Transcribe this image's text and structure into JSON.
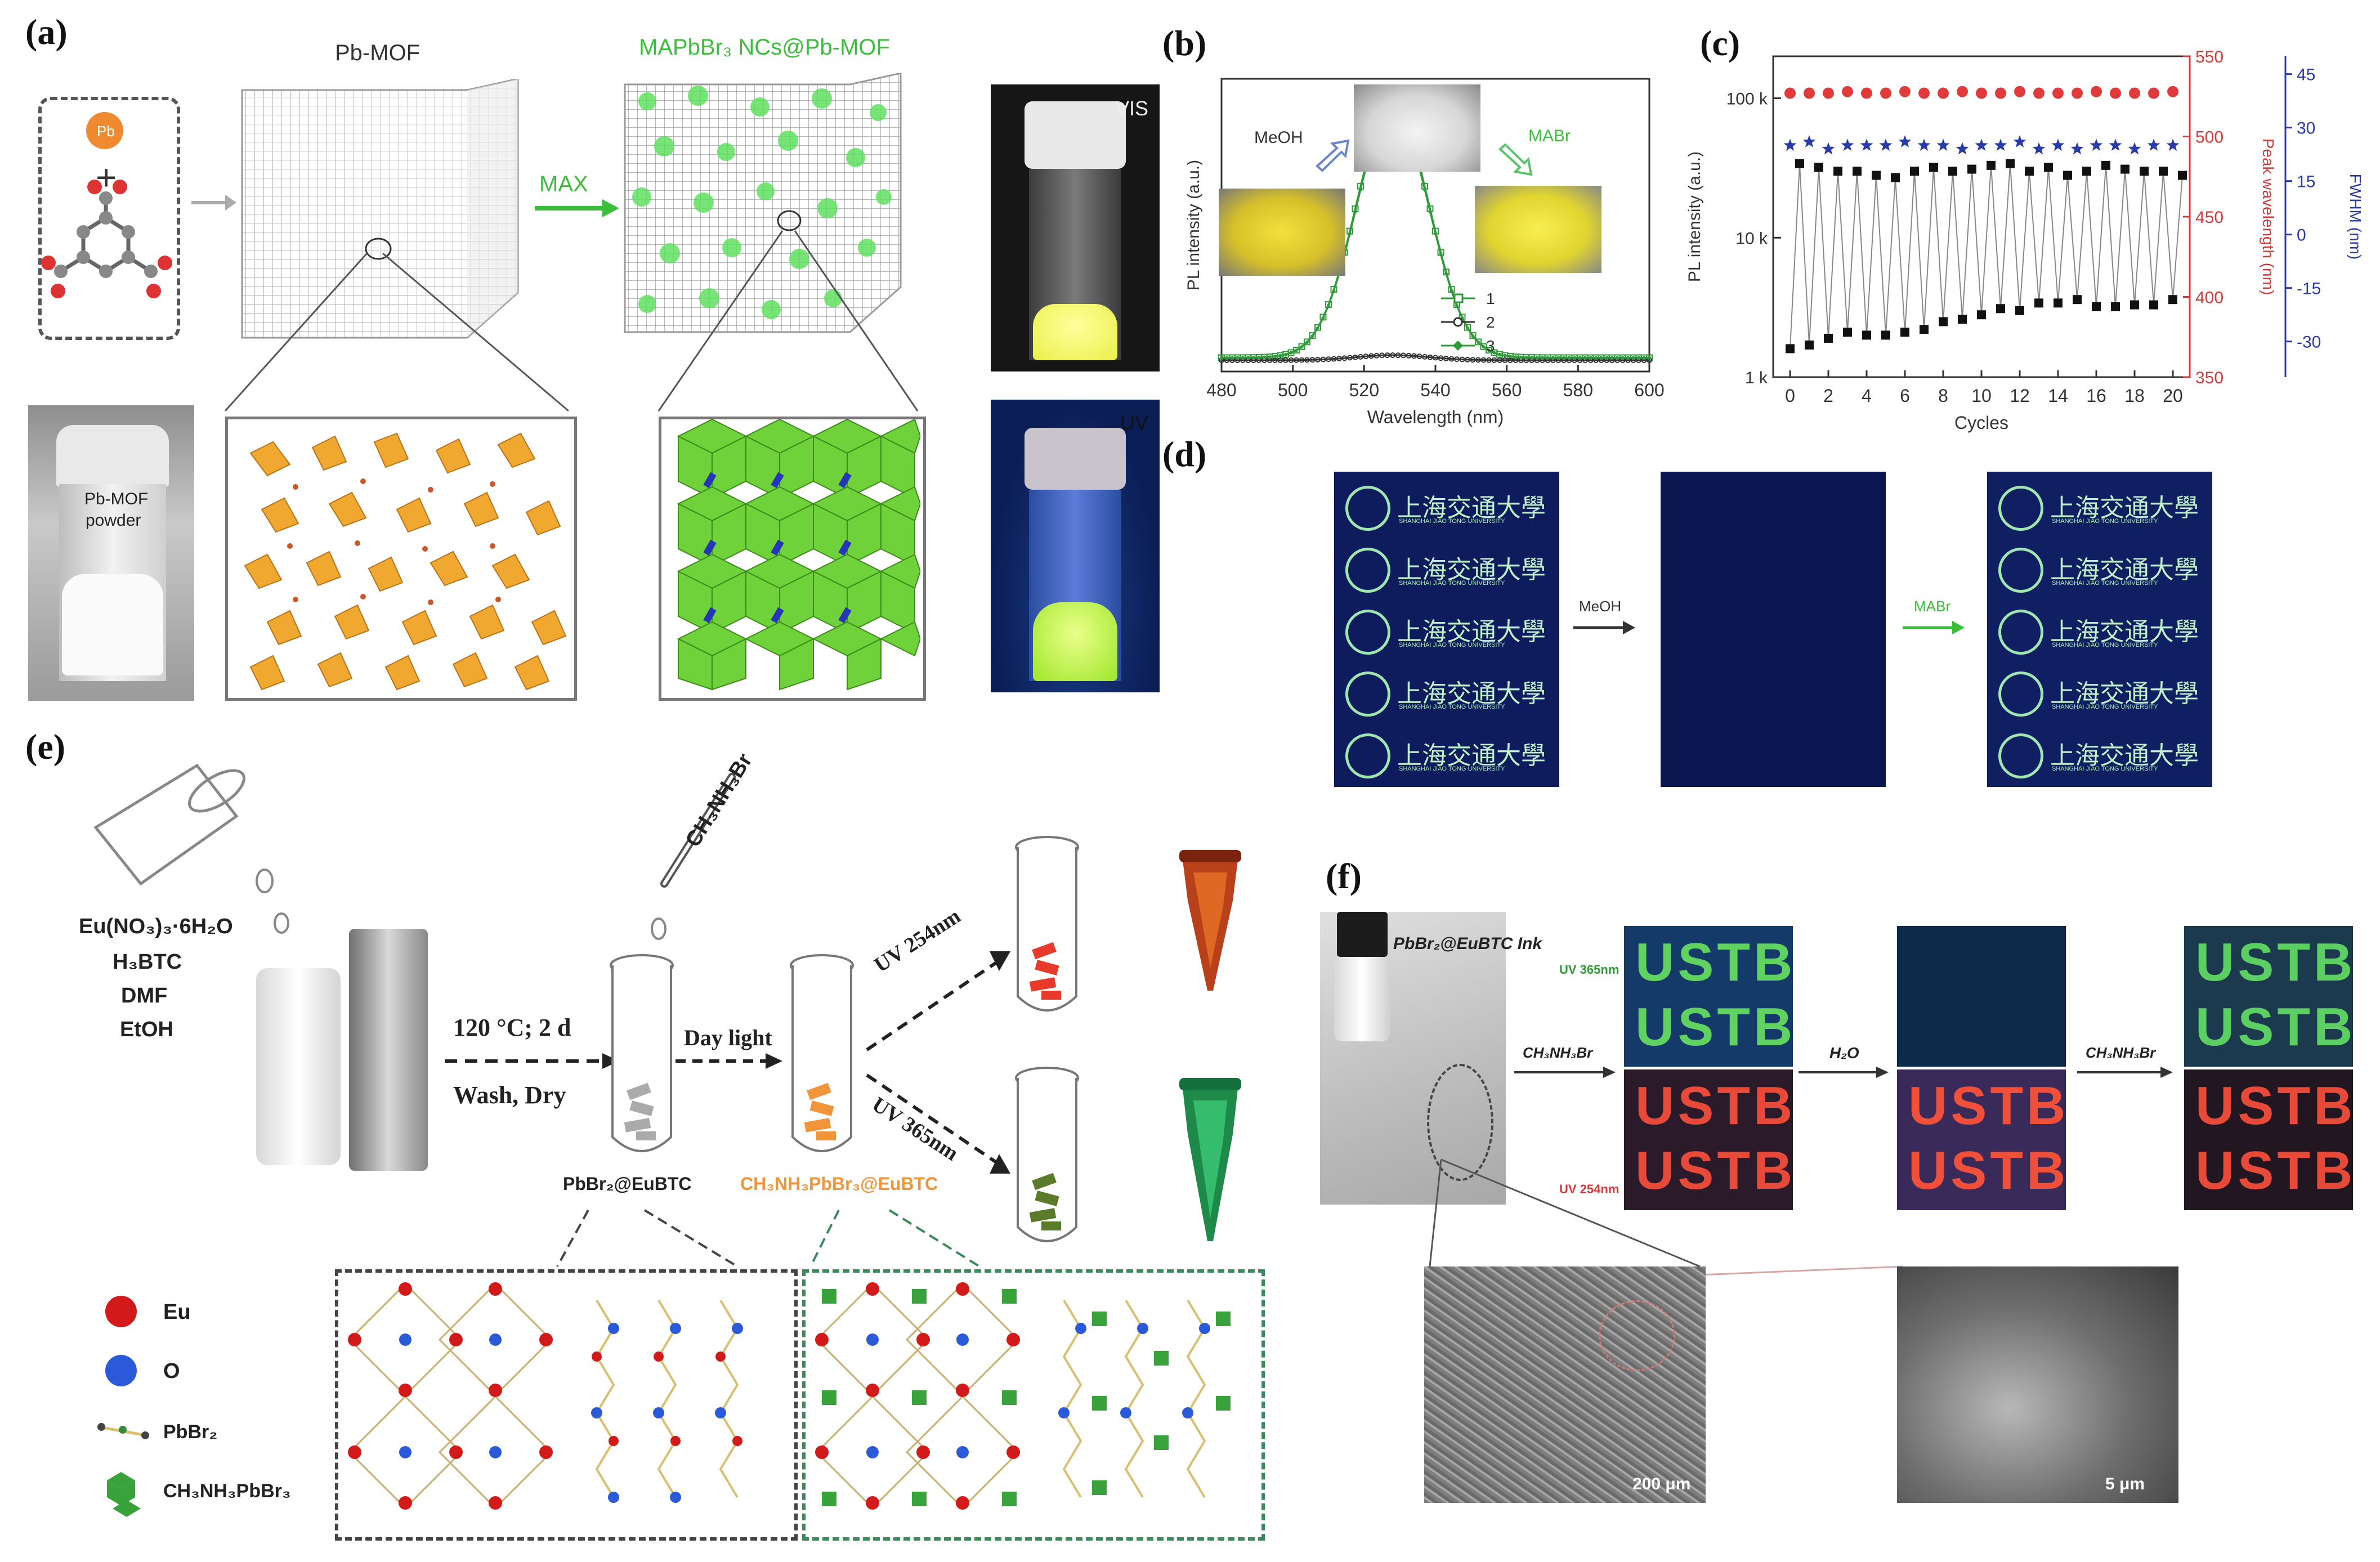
{
  "panels": {
    "a": {
      "label": "(a)",
      "title_left": "Pb-MOF",
      "title_right": "MAPbBr₃ NCs@Pb-MOF",
      "pb_label": "Pb",
      "plus": "+",
      "max_label": "MAX",
      "powder_label_1": "Pb-MOF",
      "powder_label_2": "powder",
      "vis_label": "VIS",
      "uv_label": "UV"
    },
    "b": {
      "label": "(b)",
      "meoh": "MeOH",
      "mabr": "MABr"
    },
    "c": {
      "label": "(c)"
    },
    "d": {
      "label": "(d)",
      "arrow1": "MeOH",
      "arrow2": "MABr",
      "logo_text": "上海交通大學",
      "logo_subtext": "SHANGHAI JIAO TONG UNIVERSITY"
    },
    "e": {
      "label": "(e)",
      "reagents": [
        "Eu(NO₃)₃·6H₂O",
        "H₃BTC",
        "DMF",
        "EtOH"
      ],
      "reagent_top": "CH₃NH₃Br",
      "cond1": "120 °C; 2 d",
      "cond2": "Wash, Dry",
      "daylight": "Day light",
      "uv254": "UV 254nm",
      "uv365": "UV 365nm",
      "product1": "PbBr₂@EuBTC",
      "product2": "CH₃NH₃PbBr₃@EuBTC",
      "legend": [
        "Eu",
        "O",
        "PbBr₂",
        "CH₃NH₃PbBr₃"
      ]
    },
    "f": {
      "label": "(f)",
      "ink": "PbBr₂@EuBTC Ink",
      "uv365": "UV 365nm",
      "uv254": "UV 254nm",
      "arrow1": "CH₃NH₃Br",
      "arrow2": "H₂O",
      "arrow3": "CH₃NH₃Br",
      "pattern": "USTB",
      "scale1": "200 μm",
      "scale2": "5 μm"
    }
  },
  "chart_data": [
    {
      "id": "b",
      "type": "line",
      "xlabel": "Wavelength (nm)",
      "ylabel": "PL intensity (a.u.)",
      "xlim": [
        480,
        600
      ],
      "xticks": [
        480,
        500,
        520,
        540,
        560,
        580,
        600
      ],
      "peak_nm": 528,
      "fwhm_nm": 24,
      "series": [
        {
          "name": "1",
          "marker": "open-square",
          "color": "#2e9a3a",
          "peak": 1.0
        },
        {
          "name": "2",
          "marker": "open-circle",
          "color": "#333333",
          "peak": 0.02
        },
        {
          "name": "3",
          "marker": "filled-diamond",
          "color": "#2e9a3a",
          "peak": 0.98
        }
      ]
    },
    {
      "id": "c",
      "type": "scatter",
      "xlabel": "Cycles",
      "xticks": [
        0,
        2,
        4,
        6,
        8,
        10,
        12,
        14,
        16,
        18,
        20
      ],
      "y_left": {
        "label": "PL intensity (a.u.)",
        "ticks": [
          "1 k",
          "10 k",
          "100 k"
        ],
        "log_min": 1000,
        "log_max": 200000
      },
      "y_right1": {
        "label": "Peak wavelength (nm)",
        "ticks": [
          350,
          400,
          450,
          500,
          550
        ],
        "range": [
          350,
          550
        ],
        "color": "#d23a3a"
      },
      "y_right2": {
        "label": "FWHM (nm)",
        "ticks": [
          -30,
          -15,
          0,
          15,
          30,
          45
        ],
        "range": [
          -40,
          50
        ],
        "color": "#2a3aa8"
      },
      "intensity_high": [
        34000,
        32000,
        30000,
        30000,
        28000,
        27000,
        30000,
        32000,
        30000,
        31000,
        33000,
        34000,
        30000,
        32000,
        28000,
        30000,
        33000,
        31000,
        30000,
        30000,
        28000
      ],
      "intensity_low": [
        1600,
        1700,
        1900,
        2100,
        2000,
        2000,
        2100,
        2200,
        2500,
        2600,
        2800,
        3100,
        3000,
        3400,
        3400,
        3600,
        3200,
        3200,
        3300,
        3300,
        3600
      ],
      "peak_wavelength": [
        527,
        527,
        527,
        528,
        527,
        527,
        528,
        527,
        527,
        528,
        527,
        527,
        528,
        527,
        527,
        527,
        528,
        527,
        527,
        527,
        528
      ],
      "fwhm": [
        25,
        26,
        24,
        25,
        25,
        25,
        26,
        25,
        25,
        24,
        25,
        25,
        26,
        24,
        25,
        24,
        25,
        25,
        24,
        25,
        25
      ]
    }
  ]
}
